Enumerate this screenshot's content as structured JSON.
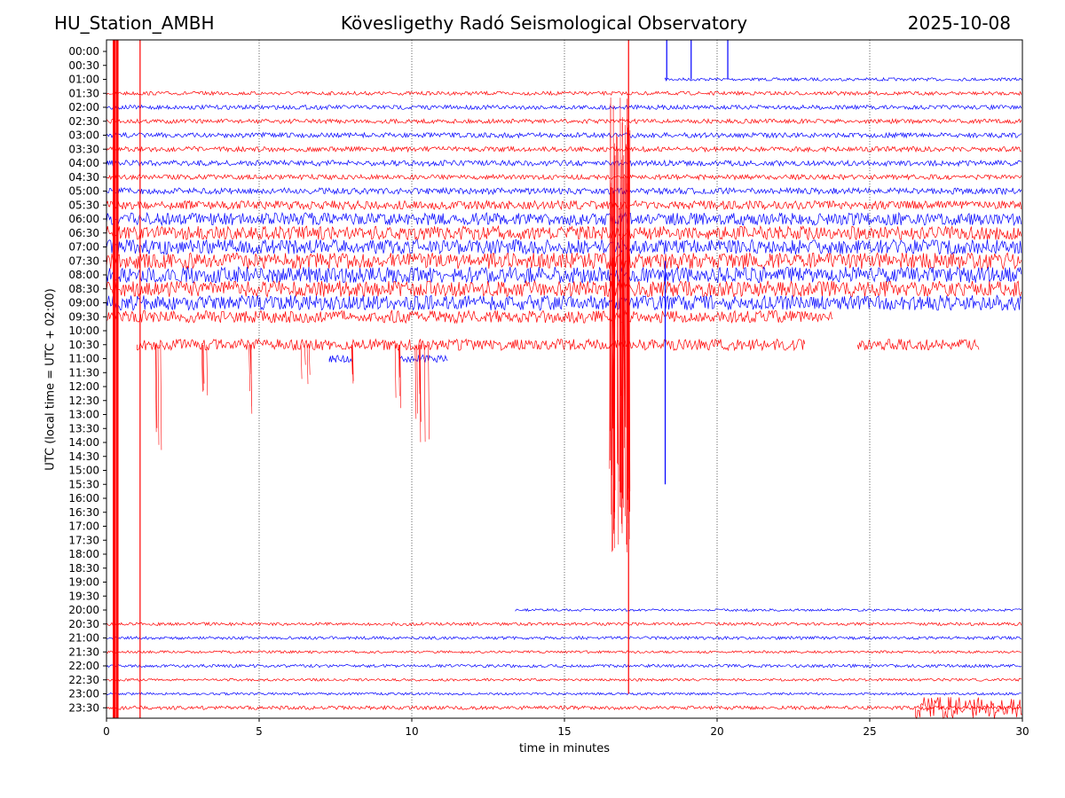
{
  "header": {
    "station": "HU_Station_AMBH",
    "title": "Kövesligethy Radó Seismological Observatory",
    "date": "2025-10-08"
  },
  "chart_data": {
    "type": "line",
    "title": "Kövesligethy Radó Seismological Observatory",
    "xlabel": "time in minutes",
    "ylabel": "UTC (local time = UTC + 02:00)",
    "xlim": [
      0,
      30
    ],
    "x_ticks": [
      "0",
      "5",
      "10",
      "15",
      "20",
      "25",
      "30"
    ],
    "x_tick_values": [
      0,
      5,
      10,
      15,
      20,
      25,
      30
    ],
    "vertical_gridlines_at": [
      5,
      10,
      15,
      20,
      25
    ],
    "row_labels": [
      "00:00",
      "00:30",
      "01:00",
      "01:30",
      "02:00",
      "02:30",
      "03:00",
      "03:30",
      "04:00",
      "04:30",
      "05:00",
      "05:30",
      "06:00",
      "06:30",
      "07:00",
      "07:30",
      "08:00",
      "08:30",
      "09:00",
      "09:30",
      "10:00",
      "10:30",
      "11:00",
      "11:30",
      "12:00",
      "12:30",
      "13:00",
      "13:30",
      "14:00",
      "14:30",
      "15:00",
      "15:30",
      "16:00",
      "16:30",
      "17:00",
      "17:30",
      "18:00",
      "18:30",
      "19:00",
      "19:30",
      "20:00",
      "20:30",
      "21:00",
      "21:30",
      "22:00",
      "22:30",
      "23:00",
      "23:30"
    ],
    "colors": {
      "odd_rows": "#ff0000",
      "even_rows": "#0000ff"
    },
    "traces": [
      {
        "row": "01:00",
        "start": 18.3,
        "end": 30.0,
        "noise": 0.25
      },
      {
        "row": "01:30",
        "start": 0.0,
        "end": 30.0,
        "noise": 0.3
      },
      {
        "row": "02:00",
        "start": 0.0,
        "end": 30.0,
        "noise": 0.35
      },
      {
        "row": "02:30",
        "start": 0.0,
        "end": 30.0,
        "noise": 0.35
      },
      {
        "row": "03:00",
        "start": 0.0,
        "end": 30.0,
        "noise": 0.4
      },
      {
        "row": "03:30",
        "start": 0.0,
        "end": 30.0,
        "noise": 0.4
      },
      {
        "row": "04:00",
        "start": 0.0,
        "end": 30.0,
        "noise": 0.45
      },
      {
        "row": "04:30",
        "start": 0.0,
        "end": 30.0,
        "noise": 0.4
      },
      {
        "row": "05:00",
        "start": 0.0,
        "end": 30.0,
        "noise": 0.5
      },
      {
        "row": "05:30",
        "start": 0.0,
        "end": 30.0,
        "noise": 0.7
      },
      {
        "row": "06:00",
        "start": 0.0,
        "end": 30.0,
        "noise": 1.0
      },
      {
        "row": "06:30",
        "start": 0.0,
        "end": 30.0,
        "noise": 1.1
      },
      {
        "row": "07:00",
        "start": 0.0,
        "end": 30.0,
        "noise": 1.2
      },
      {
        "row": "07:30",
        "start": 0.0,
        "end": 30.0,
        "noise": 1.3
      },
      {
        "row": "08:00",
        "start": 0.0,
        "end": 30.0,
        "noise": 1.3
      },
      {
        "row": "08:30",
        "start": 0.0,
        "end": 30.0,
        "noise": 1.3
      },
      {
        "row": "09:00",
        "start": 0.0,
        "end": 30.0,
        "noise": 1.2
      },
      {
        "row": "09:30",
        "start": 0.0,
        "end": 23.8,
        "noise": 1.0
      },
      {
        "row": "10:30",
        "start": 1.0,
        "end": 22.9,
        "noise": 0.9
      },
      {
        "row": "10:30",
        "start": 24.6,
        "end": 28.6,
        "noise": 0.9
      },
      {
        "row": "11:00",
        "start": 7.3,
        "end": 8.1,
        "noise": 0.6
      },
      {
        "row": "11:00",
        "start": 9.6,
        "end": 11.2,
        "noise": 0.6
      },
      {
        "row": "20:00",
        "start": 13.4,
        "end": 30.0,
        "noise": 0.2
      },
      {
        "row": "20:30",
        "start": 0.0,
        "end": 30.0,
        "noise": 0.25
      },
      {
        "row": "21:00",
        "start": 0.0,
        "end": 30.0,
        "noise": 0.25
      },
      {
        "row": "21:30",
        "start": 0.0,
        "end": 30.0,
        "noise": 0.2
      },
      {
        "row": "22:00",
        "start": 0.0,
        "end": 30.0,
        "noise": 0.25
      },
      {
        "row": "22:30",
        "start": 0.0,
        "end": 30.0,
        "noise": 0.2
      },
      {
        "row": "23:00",
        "start": 0.0,
        "end": 30.0,
        "noise": 0.2
      },
      {
        "row": "23:30",
        "start": 0.0,
        "end": 30.0,
        "noise": 0.3
      }
    ],
    "bursts": [
      {
        "row": "23:30",
        "start": 26.5,
        "end": 30.0,
        "noise": 1.8
      }
    ],
    "spikes": [
      {
        "at": 0.25,
        "from_row": "00:00",
        "to_row": "23:30",
        "color": "#ff0000"
      },
      {
        "at": 0.35,
        "from_row": "00:00",
        "to_row": "23:30",
        "color": "#ff0000"
      },
      {
        "at": 1.1,
        "from_row": "00:00",
        "to_row": "23:30",
        "color": "#ff0000"
      },
      {
        "at": 18.35,
        "from_row": "00:00",
        "to_row": "01:00",
        "color": "#0000ff"
      },
      {
        "at": 19.15,
        "from_row": "00:00",
        "to_row": "01:00",
        "color": "#0000ff"
      },
      {
        "at": 20.35,
        "from_row": "00:00",
        "to_row": "01:00",
        "color": "#0000ff"
      },
      {
        "at": 18.3,
        "from_row": "07:30",
        "to_row": "15:30",
        "color": "#0000ff"
      },
      {
        "at": 17.1,
        "from_row": "00:00",
        "to_row": "23:00",
        "color": "#ff0000"
      }
    ],
    "quake": {
      "start": 16.5,
      "end": 17.15,
      "from_row": "01:30",
      "to_row": "18:00",
      "color": "#ff0000"
    },
    "dropouts": [
      {
        "row": "10:30",
        "at": 1.7,
        "depth_rows": 8
      },
      {
        "row": "10:30",
        "at": 3.2,
        "depth_rows": 4
      },
      {
        "row": "10:30",
        "at": 4.8,
        "depth_rows": 5
      },
      {
        "row": "10:30",
        "at": 6.5,
        "depth_rows": 3
      },
      {
        "row": "10:30",
        "at": 8.0,
        "depth_rows": 3
      },
      {
        "row": "10:30",
        "at": 9.5,
        "depth_rows": 5
      },
      {
        "row": "10:30",
        "at": 10.2,
        "depth_rows": 8
      },
      {
        "row": "10:30",
        "at": 10.4,
        "depth_rows": 8
      }
    ]
  }
}
